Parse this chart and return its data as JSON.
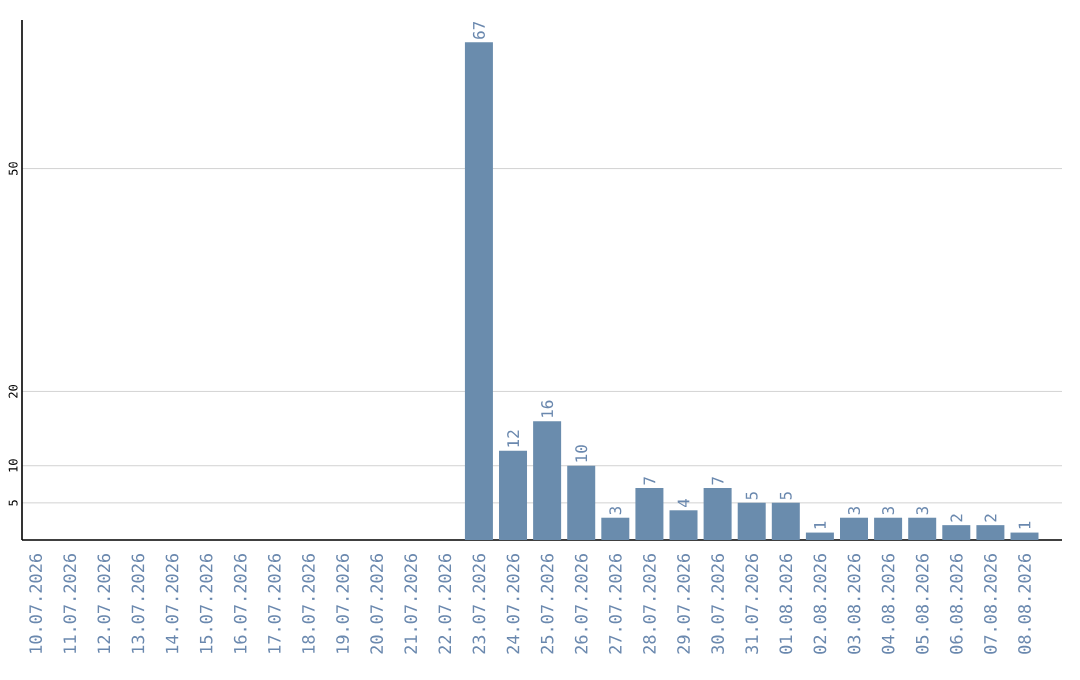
{
  "chart_data": {
    "type": "bar",
    "categories": [
      "10.07.2026",
      "11.07.2026",
      "12.07.2026",
      "13.07.2026",
      "14.07.2026",
      "15.07.2026",
      "16.07.2026",
      "17.07.2026",
      "18.07.2026",
      "19.07.2026",
      "20.07.2026",
      "21.07.2026",
      "22.07.2026",
      "23.07.2026",
      "24.07.2026",
      "25.07.2026",
      "26.07.2026",
      "27.07.2026",
      "28.07.2026",
      "29.07.2026",
      "30.07.2026",
      "31.07.2026",
      "01.08.2026",
      "02.08.2026",
      "03.08.2026",
      "04.08.2026",
      "05.08.2026",
      "06.08.2026",
      "07.08.2026",
      "08.08.2026"
    ],
    "values": [
      0,
      0,
      0,
      0,
      0,
      0,
      0,
      0,
      0,
      0,
      0,
      0,
      0,
      67,
      12,
      16,
      10,
      3,
      7,
      4,
      7,
      5,
      5,
      1,
      3,
      3,
      3,
      2,
      2,
      1
    ],
    "value_labels": [
      null,
      null,
      null,
      null,
      null,
      null,
      null,
      null,
      null,
      null,
      null,
      null,
      null,
      "67",
      "12",
      "16",
      "10",
      "3",
      "7",
      "4",
      "7",
      "5",
      "5",
      "1",
      "3",
      "3",
      "3",
      "2",
      "2",
      "1"
    ],
    "color": "#6a8cad",
    "ylim": [
      0,
      70
    ],
    "yticks": [
      5,
      10,
      20,
      50
    ],
    "grid": "y"
  }
}
